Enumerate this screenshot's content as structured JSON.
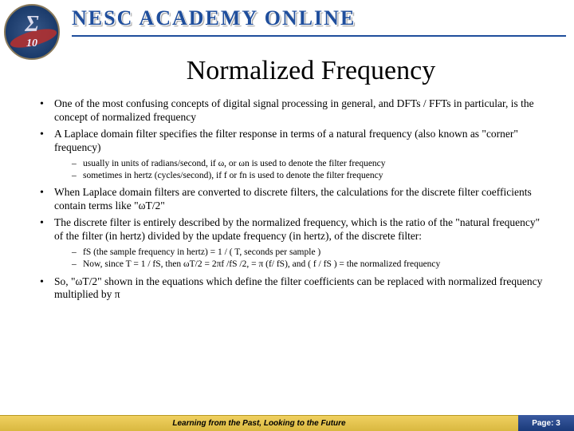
{
  "header": {
    "brand": "NESC ACADEMY ONLINE",
    "logo_sigma": "Σ",
    "logo_number": "10"
  },
  "title": "Normalized Frequency",
  "bullets": {
    "b1": "One of the most confusing concepts of digital signal processing in general, and DFTs / FFTs in particular, is the concept of normalized frequency",
    "b2": "A Laplace domain filter specifies the filter response in terms of a natural frequency (also known as \"corner\" frequency)",
    "b2s1": "usually in units of radians/second, if ω, or ωn is used to denote the filter frequency",
    "b2s2": "sometimes in hertz (cycles/second), if f or fn is used to denote the filter frequency",
    "b3": "When Laplace domain filters are converted to discrete filters, the calculations for the discrete filter coefficients contain terms like \"ωT/2\"",
    "b4": "The discrete filter is entirely described by the normalized frequency, which is the ratio of the \"natural frequency\" of the filter (in hertz) divided by the update frequency (in hertz), of the discrete filter:",
    "b4s1": "fS (the sample frequency in hertz) =  1 / ( T, seconds per sample )",
    "b4s2": "Now, since T = 1 / fS, then ωT/2 = 2πf /fS /2, = π (f/ fS), and ( f / fS ) = the normalized frequency",
    "b5": "So, \"ωT/2\" shown in the equations which define the filter coefficients can be replaced with normalized frequency multiplied by π"
  },
  "footer": {
    "tagline": "Learning from the Past, Looking to the Future",
    "page_label": "Page: 3"
  }
}
